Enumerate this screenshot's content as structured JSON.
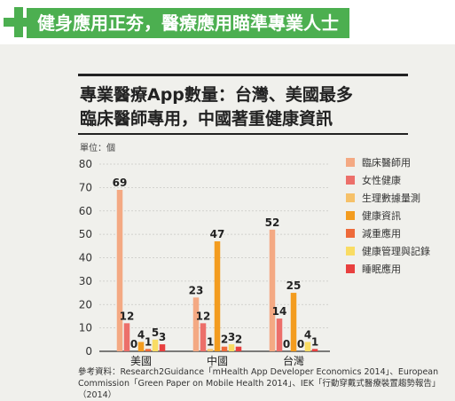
{
  "header": {
    "title": "健身應用正夯，醫療應用瞄準專業人士"
  },
  "chart_data": {
    "type": "bar",
    "title_line1": "專業醫療App數量：台灣、美國最多",
    "title_line2": "臨床醫師專用，中國著重健康資訊",
    "unit_label": "單位：個",
    "categories": [
      "美國",
      "中國",
      "台灣"
    ],
    "ylim": [
      0,
      80
    ],
    "yticks": [
      "0",
      "10",
      "20",
      "30",
      "40",
      "50",
      "60",
      "70",
      "80"
    ],
    "series": [
      {
        "name": "臨床醫師用",
        "color": "#f4a983",
        "values": [
          69,
          23,
          52
        ]
      },
      {
        "name": "女性健康",
        "color": "#ec6f6a",
        "values": [
          12,
          12,
          14
        ]
      },
      {
        "name": "生理數據量測",
        "color": "#f6c169",
        "values": [
          0,
          1,
          0
        ]
      },
      {
        "name": "健康資訊",
        "color": "#f39c1f",
        "values": [
          4,
          47,
          25
        ]
      },
      {
        "name": "減重應用",
        "color": "#ee6a3a",
        "values": [
          1,
          2,
          0
        ]
      },
      {
        "name": "健康管理與記錄",
        "color": "#f9dc63",
        "values": [
          5,
          3,
          4
        ]
      },
      {
        "name": "睡眠應用",
        "color": "#e8403f",
        "values": [
          3,
          2,
          1
        ]
      }
    ],
    "data_labels": [
      [
        "69",
        "12",
        "0",
        "4",
        "1",
        "5",
        "3"
      ],
      [
        "23",
        "12",
        "1",
        "47",
        "2",
        "3",
        "2"
      ],
      [
        "52",
        "14",
        "0",
        "25",
        "0",
        "4",
        "1"
      ]
    ],
    "grid": true,
    "legend_position": "right"
  },
  "source_line1": "參考資料：Research2Guidance「mHealth App Developer Economics 2014」、European",
  "source_line2": "Commission「Green Paper on Mobile Health 2014」、IEK「行動穿戴式醫療裝置趨勢報告」（2014）"
}
